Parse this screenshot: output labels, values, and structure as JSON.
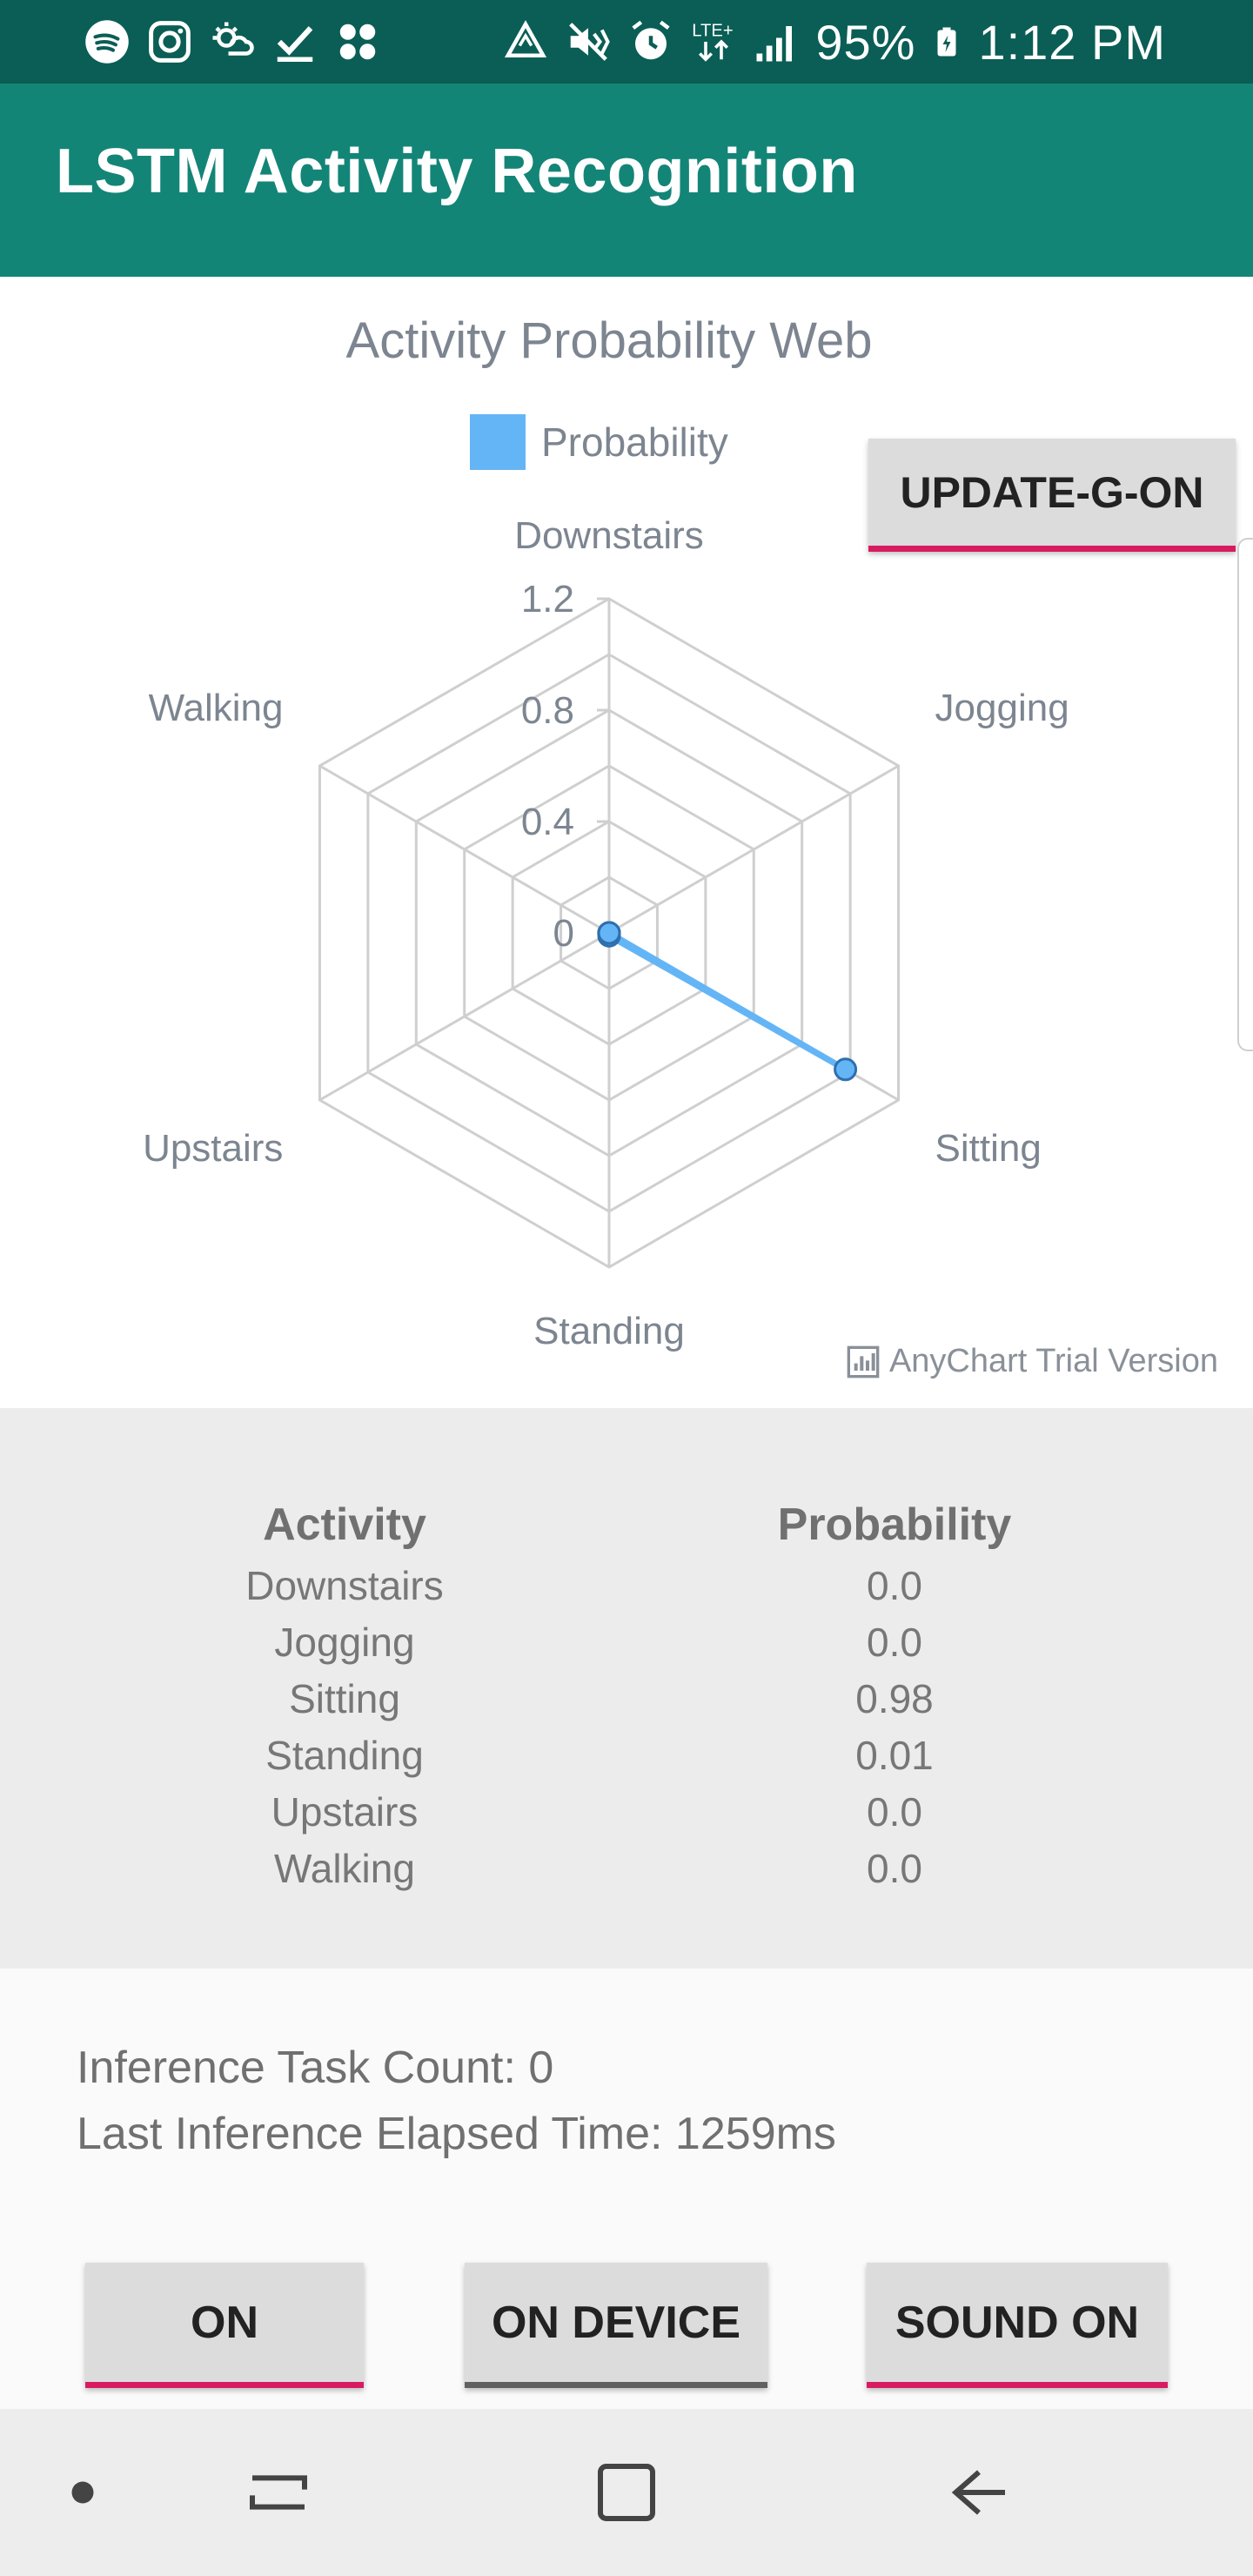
{
  "status_bar": {
    "battery": "95%",
    "time": "1:12 PM",
    "network": "LTE+",
    "left_icons": [
      "spotify-icon",
      "instagram-icon",
      "weather-icon",
      "check-icon",
      "apps-icon"
    ],
    "right_icons": [
      "data-saver-icon",
      "vibrate-icon",
      "alarm-icon",
      "lte-icon",
      "signal-icon",
      "battery-icon"
    ]
  },
  "app": {
    "title": "LSTM Activity Recognition",
    "colors": {
      "primary": "#138577",
      "primary_dark": "#0a5e55",
      "accent": "#d81b60",
      "series": "#64b5f6"
    }
  },
  "chart_data": {
    "type": "radar",
    "title": "Activity Probability Web",
    "legend": {
      "position": "top-center",
      "entries": [
        "Probability"
      ]
    },
    "categories": [
      "Downstairs",
      "Jogging",
      "Sitting",
      "Standing",
      "Upstairs",
      "Walking"
    ],
    "series": [
      {
        "name": "Probability",
        "values": [
          0.0,
          0.0,
          0.98,
          0.01,
          0.0,
          0.0
        ],
        "color": "#64b5f6"
      }
    ],
    "ylim": [
      0,
      1.2
    ],
    "ticks": [
      "0",
      "0.4",
      "0.8",
      "1.2"
    ],
    "tick_values": [
      0,
      0.4,
      0.8,
      1.2
    ],
    "grid": true,
    "watermark": "AnyChart Trial Version"
  },
  "update_button": {
    "label": "UPDATE-G-ON"
  },
  "table": {
    "headers": {
      "activity": "Activity",
      "probability": "Probability"
    },
    "rows": [
      {
        "activity": "Downstairs",
        "probability": "0.0"
      },
      {
        "activity": "Jogging",
        "probability": "0.0"
      },
      {
        "activity": "Sitting",
        "probability": "0.98"
      },
      {
        "activity": "Standing",
        "probability": "0.01"
      },
      {
        "activity": "Upstairs",
        "probability": "0.0"
      },
      {
        "activity": "Walking",
        "probability": "0.0"
      }
    ]
  },
  "info": {
    "task_count": "Inference Task Count: 0",
    "elapsed": "Last Inference Elapsed Time: 1259ms"
  },
  "buttons": {
    "on": "ON",
    "device": "ON DEVICE",
    "sound": "SOUND ON"
  },
  "nav": {
    "items": [
      "dot-icon",
      "recents-icon",
      "home-icon",
      "back-icon"
    ]
  }
}
